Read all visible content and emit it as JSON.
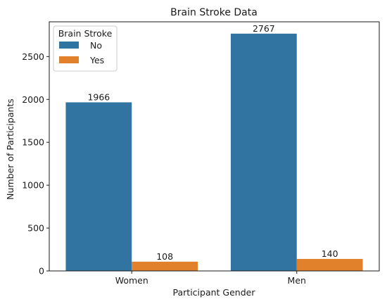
{
  "chart_data": {
    "type": "bar",
    "title": "Brain Stroke Data",
    "xlabel": "Participant Gender",
    "ylabel": "Number of Participants",
    "categories": [
      "Women",
      "Men"
    ],
    "series": [
      {
        "name": "No",
        "values": [
          1966,
          2767
        ],
        "color": "#3274a1"
      },
      {
        "name": "Yes",
        "values": [
          108,
          140
        ],
        "color": "#e1812c"
      }
    ],
    "ylim": [
      0,
      2905
    ],
    "yticks": [
      0,
      500,
      1000,
      1500,
      2000,
      2500
    ],
    "grid": false,
    "legend": {
      "title": "Brain Stroke",
      "placement": "top-left"
    }
  }
}
